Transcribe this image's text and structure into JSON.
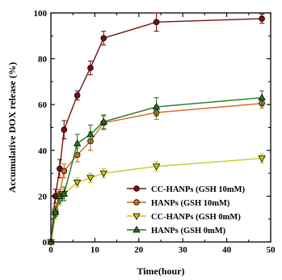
{
  "chart_data": {
    "type": "line",
    "xlabel": "Time(hour)",
    "ylabel": "Accumulative DOX release (%)",
    "xlim": [
      0,
      50
    ],
    "ylim": [
      0,
      100
    ],
    "xticks": [
      0,
      10,
      20,
      30,
      40,
      50
    ],
    "yticks": [
      0,
      20,
      40,
      60,
      80,
      100
    ],
    "xtick_labels": [
      "0",
      "10",
      "20",
      "30",
      "40",
      "50"
    ],
    "ytick_labels": [
      "0",
      "20",
      "40",
      "60",
      "80",
      "100"
    ],
    "grid": false,
    "legend_position": "bottom-right",
    "x": [
      0,
      1,
      2,
      3,
      6,
      9,
      12,
      24,
      48
    ],
    "series": [
      {
        "name": "CC-HANPs (GSH 10mM)",
        "color": "#7a1010",
        "marker": "circle",
        "y": [
          0,
          20,
          32,
          49,
          64,
          76,
          89,
          96,
          97.5
        ],
        "err": [
          0,
          3,
          4,
          4,
          2,
          3,
          3,
          4,
          2
        ]
      },
      {
        "name": "HANPs (GSH 10mM)",
        "color": "#d2691e",
        "marker": "circle",
        "y": [
          0,
          14,
          21,
          31,
          38,
          44,
          52,
          56.5,
          60.5
        ],
        "err": [
          0,
          2,
          2,
          3,
          3,
          4,
          3,
          3,
          2
        ]
      },
      {
        "name": "CC-HANPs (GSH 0mM)",
        "color": "#c8c820",
        "marker": "triangle-down",
        "y": [
          0,
          12,
          18,
          21,
          26,
          28,
          30,
          33,
          36.5
        ],
        "err": [
          0,
          2,
          2,
          2,
          2,
          2,
          2,
          2,
          2
        ]
      },
      {
        "name": "HANPs (GSH 0mM)",
        "color": "#1e7a1e",
        "marker": "triangle-up",
        "y": [
          0,
          13,
          20,
          21,
          43,
          47,
          52.5,
          59,
          63
        ],
        "err": [
          0,
          2,
          2,
          3,
          4,
          4,
          3,
          4,
          3
        ]
      }
    ]
  }
}
